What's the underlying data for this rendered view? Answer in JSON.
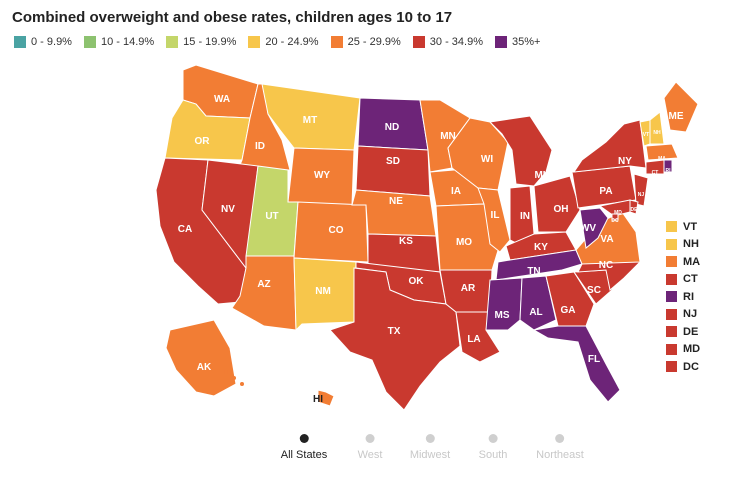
{
  "title": "Combined overweight and obese rates, children ages 10 to 17",
  "legend": [
    {
      "label": "0 - 9.9%",
      "color": "#4aa3a3"
    },
    {
      "label": "10 - 14.9%",
      "color": "#8dc26f"
    },
    {
      "label": "15 - 19.9%",
      "color": "#c4d66a"
    },
    {
      "label": "20 - 24.9%",
      "color": "#f7c64b"
    },
    {
      "label": "25 - 29.9%",
      "color": "#f27d34"
    },
    {
      "label": "30 - 34.9%",
      "color": "#c9392f"
    },
    {
      "label": "35%+",
      "color": "#6d2478"
    }
  ],
  "states": [
    {
      "abbr": "WA",
      "bin": 4
    },
    {
      "abbr": "OR",
      "bin": 3
    },
    {
      "abbr": "CA",
      "bin": 5
    },
    {
      "abbr": "ID",
      "bin": 4
    },
    {
      "abbr": "NV",
      "bin": 5
    },
    {
      "abbr": "MT",
      "bin": 3
    },
    {
      "abbr": "WY",
      "bin": 4
    },
    {
      "abbr": "UT",
      "bin": 2
    },
    {
      "abbr": "AZ",
      "bin": 4
    },
    {
      "abbr": "CO",
      "bin": 4
    },
    {
      "abbr": "NM",
      "bin": 3
    },
    {
      "abbr": "ND",
      "bin": 6
    },
    {
      "abbr": "SD",
      "bin": 5
    },
    {
      "abbr": "NE",
      "bin": 4
    },
    {
      "abbr": "KS",
      "bin": 5
    },
    {
      "abbr": "OK",
      "bin": 5
    },
    {
      "abbr": "TX",
      "bin": 5
    },
    {
      "abbr": "MN",
      "bin": 4
    },
    {
      "abbr": "IA",
      "bin": 4
    },
    {
      "abbr": "MO",
      "bin": 4
    },
    {
      "abbr": "AR",
      "bin": 5
    },
    {
      "abbr": "LA",
      "bin": 5
    },
    {
      "abbr": "WI",
      "bin": 4
    },
    {
      "abbr": "IL",
      "bin": 4
    },
    {
      "abbr": "MI",
      "bin": 5
    },
    {
      "abbr": "IN",
      "bin": 5
    },
    {
      "abbr": "OH",
      "bin": 5
    },
    {
      "abbr": "KY",
      "bin": 5
    },
    {
      "abbr": "TN",
      "bin": 6
    },
    {
      "abbr": "MS",
      "bin": 6
    },
    {
      "abbr": "AL",
      "bin": 6
    },
    {
      "abbr": "GA",
      "bin": 5
    },
    {
      "abbr": "FL",
      "bin": 6
    },
    {
      "abbr": "SC",
      "bin": 5
    },
    {
      "abbr": "NC",
      "bin": 5
    },
    {
      "abbr": "VA",
      "bin": 4
    },
    {
      "abbr": "WV",
      "bin": 6
    },
    {
      "abbr": "PA",
      "bin": 5
    },
    {
      "abbr": "NY",
      "bin": 5
    },
    {
      "abbr": "ME",
      "bin": 4
    },
    {
      "abbr": "AK",
      "bin": 4
    },
    {
      "abbr": "HI",
      "bin": 4
    },
    {
      "abbr": "VT",
      "bin": 3
    },
    {
      "abbr": "NH",
      "bin": 3
    },
    {
      "abbr": "MA",
      "bin": 4
    },
    {
      "abbr": "CT",
      "bin": 5
    },
    {
      "abbr": "RI",
      "bin": 6
    },
    {
      "abbr": "NJ",
      "bin": 5
    },
    {
      "abbr": "DE",
      "bin": 5
    },
    {
      "abbr": "MD",
      "bin": 5
    },
    {
      "abbr": "DC",
      "bin": 5
    }
  ],
  "northeast_list": [
    {
      "abbr": "VT",
      "color": "#f7c64b"
    },
    {
      "abbr": "NH",
      "color": "#f7c64b"
    },
    {
      "abbr": "MA",
      "color": "#f27d34"
    },
    {
      "abbr": "CT",
      "color": "#c9392f"
    },
    {
      "abbr": "RI",
      "color": "#6d2478"
    },
    {
      "abbr": "NJ",
      "color": "#c9392f"
    },
    {
      "abbr": "DE",
      "color": "#c9392f"
    },
    {
      "abbr": "MD",
      "color": "#c9392f"
    },
    {
      "abbr": "DC",
      "color": "#c9392f"
    }
  ],
  "region_tabs": [
    {
      "label": "All States",
      "active": true
    },
    {
      "label": "West",
      "active": false
    },
    {
      "label": "Midwest",
      "active": false
    },
    {
      "label": "South",
      "active": false
    },
    {
      "label": "Northeast",
      "active": false
    }
  ]
}
